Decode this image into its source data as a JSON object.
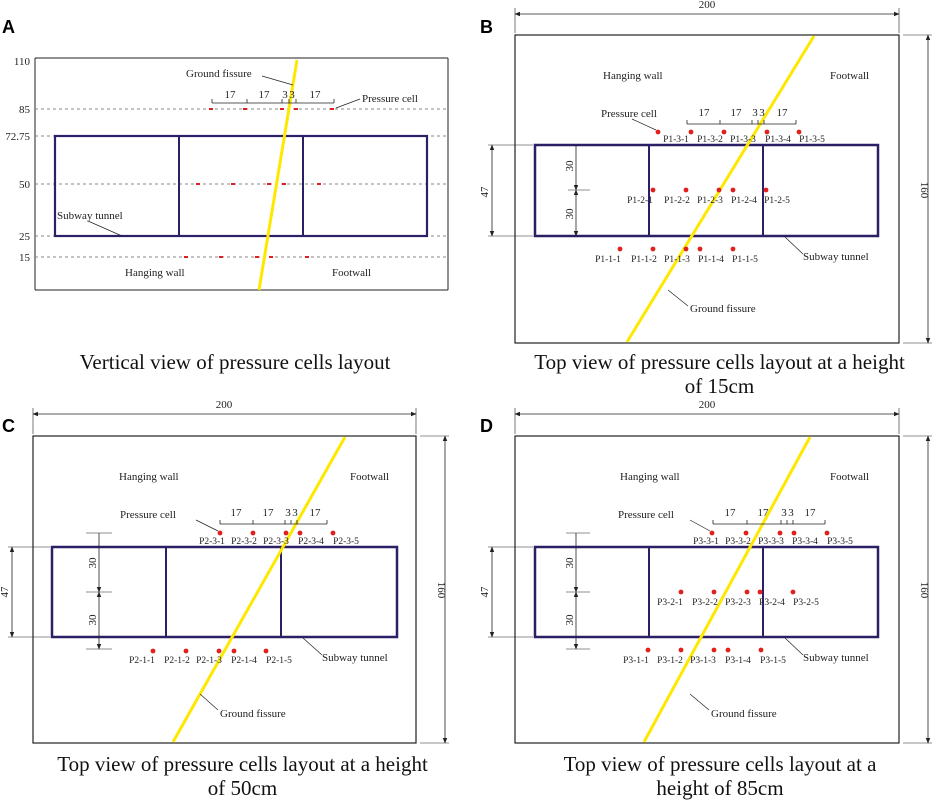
{
  "panels": {
    "A": {
      "letter": "A",
      "caption": "Vertical view of pressure cells layout",
      "y_ticks": [
        "110",
        "85",
        "72.75",
        "50",
        "25",
        "15"
      ],
      "labels": {
        "fissure": "Ground fissure",
        "cell": "Pressure cell",
        "tunnel": "Subway tunnel",
        "hanging": "Hanging wall",
        "foot": "Footwall"
      },
      "spacing": [
        "17",
        "17",
        "3",
        "3",
        "17"
      ]
    },
    "B": {
      "letter": "B",
      "caption_line1": "Top view of pressure cells layout at a height",
      "caption_line2": "of 15cm",
      "width_dim": "200",
      "height_dim": "160",
      "tunnel_dim": "47",
      "half_dim": "30",
      "labels": {
        "hanging": "Hanging wall",
        "foot": "Footwall",
        "cell": "Pressure cell",
        "tunnel": "Subway tunnel",
        "fissure": "Ground fissure"
      },
      "spacing": [
        "17",
        "17",
        "3",
        "3",
        "17"
      ],
      "top_cells": [
        "P1-3-1",
        "P1-3-2",
        "P1-3-3",
        "P1-3-4",
        "P1-3-5"
      ],
      "mid_cells": [
        "P1-2-1",
        "P1-2-2",
        "P1-2-3",
        "P1-2-4",
        "P1-2-5"
      ],
      "bot_cells": [
        "P1-1-1",
        "P1-1-2",
        "P1-1-3",
        "P1-1-4",
        "P1-1-5"
      ]
    },
    "C": {
      "letter": "C",
      "caption_line1": "Top view of pressure cells layout at a height",
      "caption_line2": "of 50cm",
      "width_dim": "200",
      "height_dim": "160",
      "tunnel_dim": "47",
      "half_dim": "30",
      "labels": {
        "hanging": "Hanging wall",
        "foot": "Footwall",
        "cell": "Pressure cell",
        "tunnel": "Subway tunnel",
        "fissure": "Ground fissure"
      },
      "spacing": [
        "17",
        "17",
        "3",
        "3",
        "17"
      ],
      "top_cells": [
        "P2-3-1",
        "P2-3-2",
        "P2-3-3",
        "P2-3-4",
        "P2-3-5"
      ],
      "bot_cells": [
        "P2-1-1",
        "P2-1-2",
        "P2-1-3",
        "P2-1-4",
        "P2-1-5"
      ]
    },
    "D": {
      "letter": "D",
      "caption_line1": "Top view of pressure cells layout at a",
      "caption_line2": "height of 85cm",
      "width_dim": "200",
      "height_dim": "160",
      "tunnel_dim": "47",
      "half_dim": "30",
      "labels": {
        "hanging": "Hanging wall",
        "foot": "Footwall",
        "cell": "Pressure cell",
        "tunnel": "Subway tunnel",
        "fissure": "Ground fissure"
      },
      "spacing": [
        "17",
        "17",
        "3",
        "3",
        "17"
      ],
      "top_cells": [
        "P3-3-1",
        "P3-3-2",
        "P3-3-3",
        "P3-3-4",
        "P3-3-5"
      ],
      "mid_cells": [
        "P3-2-1",
        "P3-2-2",
        "P3-2-3",
        "P3-2-4",
        "P3-2-5"
      ],
      "bot_cells": [
        "P3-1-1",
        "P3-1-2",
        "P3-1-3",
        "P3-1-4",
        "P3-1-5"
      ]
    }
  },
  "colors": {
    "tunnel": "#2b1f66",
    "fissure": "#ffe800",
    "cell": "#e0201c",
    "line": "#222222",
    "dash": "#888888"
  }
}
